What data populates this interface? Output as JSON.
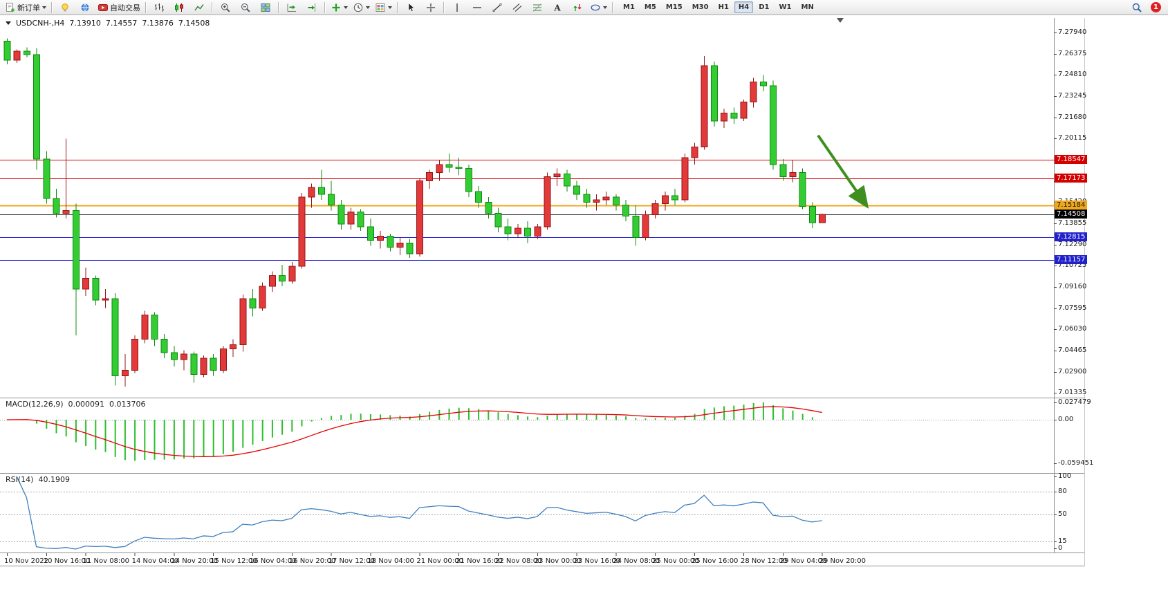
{
  "toolbar": {
    "groups": [
      {
        "name": "order",
        "items": [
          {
            "icon": "new-order",
            "label": "新订单",
            "caret": true
          }
        ]
      },
      {
        "name": "tools",
        "items": [
          {
            "icon": "metaeditor"
          },
          {
            "icon": "community"
          },
          {
            "icon": "autotrading",
            "label": "自动交易"
          }
        ]
      },
      {
        "name": "chart-types",
        "items": [
          {
            "icon": "bars-chart"
          },
          {
            "icon": "candle-chart"
          },
          {
            "icon": "line-chart"
          }
        ]
      },
      {
        "name": "zoom",
        "items": [
          {
            "icon": "zoom-in"
          },
          {
            "icon": "zoom-out"
          },
          {
            "icon": "tile-windows"
          }
        ]
      },
      {
        "name": "scroll",
        "items": [
          {
            "icon": "auto-scroll"
          },
          {
            "icon": "chart-shift"
          }
        ]
      },
      {
        "name": "insert",
        "items": [
          {
            "icon": "indicators",
            "caret": true
          },
          {
            "icon": "periods",
            "caret": true
          },
          {
            "icon": "templates",
            "caret": true
          }
        ]
      },
      {
        "name": "pointer",
        "items": [
          {
            "icon": "cursor"
          },
          {
            "icon": "crosshair"
          }
        ]
      },
      {
        "name": "objects",
        "items": [
          {
            "icon": "vline"
          },
          {
            "icon": "hline"
          },
          {
            "icon": "trendline"
          },
          {
            "icon": "channel"
          },
          {
            "icon": "fibonacci"
          },
          {
            "icon": "text"
          },
          {
            "icon": "arrows"
          },
          {
            "icon": "shapes",
            "caret": true
          }
        ]
      }
    ],
    "timeframes": {
      "items": [
        "M1",
        "M5",
        "M15",
        "M30",
        "H1",
        "H4",
        "D1",
        "W1",
        "MN"
      ],
      "active": "H4"
    },
    "notification_badge": "1"
  },
  "chart_title": {
    "symbol_period": "USDCNH-,H4",
    "open": "7.13910",
    "high": "7.14557",
    "low": "7.13876",
    "close": "7.14508"
  },
  "panels": {
    "macd": {
      "label": "MACD(12,26,9)",
      "value": "0.000091",
      "signal_value": "0.013706",
      "axis_max": "0.027479",
      "axis_zero": "0.00",
      "axis_min": "-0.059451"
    },
    "rsi": {
      "label": "RSI(14)",
      "value": "40.1909",
      "axis_labels": [
        "100",
        "80",
        "50",
        "15",
        "0"
      ],
      "axis_values": [
        100,
        80,
        50,
        15,
        0
      ],
      "levels": [
        80,
        50,
        15
      ]
    }
  },
  "chart_data": {
    "type": "candlestick",
    "symbol": "USDCNH-",
    "timeframe": "H4",
    "start_time": "10 Nov 2022 00:00",
    "candles_format": [
      "open",
      "high",
      "low",
      "close"
    ],
    "price_axis": {
      "start": 7.2794,
      "step": 0.01565,
      "count": 18
    },
    "levels": [
      {
        "name": "resistance-1",
        "price": 7.18547,
        "color": "#D40000",
        "width": 1,
        "text_color": "#fff"
      },
      {
        "name": "resistance-2",
        "price": 7.17173,
        "color": "#D40000",
        "width": 1,
        "text_color": "#fff"
      },
      {
        "name": "pivot",
        "price": 7.15184,
        "color": "#EFA71E",
        "width": 2,
        "text_color": "#1A1A00"
      },
      {
        "name": "support-1",
        "price": 7.12815,
        "color": "#2121CC",
        "width": 1,
        "text_color": "#fff"
      },
      {
        "name": "support-2",
        "price": 7.11157,
        "color": "#2121CC",
        "width": 1,
        "text_color": "#fff"
      },
      {
        "name": "current-price",
        "price": 7.14508,
        "color": "#333333",
        "width": 1,
        "badge_color": "#000000",
        "text_color": "#fff"
      }
    ],
    "arrow": {
      "from": {
        "bar": 82.6,
        "price": 7.2035
      },
      "to": {
        "bar": 87.6,
        "price": 7.151
      }
    },
    "colors": {
      "up": "#E23A3A",
      "up_border": "#941414",
      "down": "#33CC33",
      "down_border": "#0C8A0C",
      "macd_hist": "#2ABF2A",
      "macd_signal": "#E60000",
      "rsi_line": "#3F7FBF",
      "arrow": "#3F8F1F"
    },
    "time_labels": [
      {
        "bar": 0,
        "label": "10 Nov 2022"
      },
      {
        "bar": 4,
        "label": "10 Nov 16:00"
      },
      {
        "bar": 8,
        "label": "11 Nov 08:00"
      },
      {
        "bar": 13,
        "label": "14 Nov 04:00"
      },
      {
        "bar": 17,
        "label": "14 Nov 20:00"
      },
      {
        "bar": 21,
        "label": "15 Nov 12:00"
      },
      {
        "bar": 25,
        "label": "16 Nov 04:00"
      },
      {
        "bar": 29,
        "label": "16 Nov 20:00"
      },
      {
        "bar": 33,
        "label": "17 Nov 12:00"
      },
      {
        "bar": 37,
        "label": "18 Nov 04:00"
      },
      {
        "bar": 42,
        "label": "21 Nov 00:00"
      },
      {
        "bar": 46,
        "label": "21 Nov 16:00"
      },
      {
        "bar": 50,
        "label": "22 Nov 08:00"
      },
      {
        "bar": 54,
        "label": "23 Nov 00:00"
      },
      {
        "bar": 58,
        "label": "23 Nov 16:00"
      },
      {
        "bar": 62,
        "label": "24 Nov 08:00"
      },
      {
        "bar": 66,
        "label": "25 Nov 00:00"
      },
      {
        "bar": 70,
        "label": "25 Nov 16:00"
      },
      {
        "bar": 75,
        "label": "28 Nov 12:00"
      },
      {
        "bar": 79,
        "label": "29 Nov 04:00"
      },
      {
        "bar": 83,
        "label": "29 Nov 20:00"
      }
    ],
    "candles": [
      [
        7.273,
        7.275,
        7.256,
        7.259
      ],
      [
        7.259,
        7.267,
        7.257,
        7.2655
      ],
      [
        7.2655,
        7.2685,
        7.261,
        7.263
      ],
      [
        7.263,
        7.268,
        7.178,
        7.186
      ],
      [
        7.186,
        7.192,
        7.153,
        7.157
      ],
      [
        7.157,
        7.164,
        7.143,
        7.146
      ],
      [
        7.146,
        7.201,
        7.142,
        7.148
      ],
      [
        7.148,
        7.153,
        7.056,
        7.09
      ],
      [
        7.09,
        7.106,
        7.085,
        7.098
      ],
      [
        7.098,
        7.1,
        7.078,
        7.082
      ],
      [
        7.082,
        7.09,
        7.076,
        7.083
      ],
      [
        7.083,
        7.087,
        7.019,
        7.026
      ],
      [
        7.026,
        7.042,
        7.018,
        7.03
      ],
      [
        7.03,
        7.056,
        7.028,
        7.053
      ],
      [
        7.053,
        7.074,
        7.05,
        7.071
      ],
      [
        7.071,
        7.073,
        7.048,
        7.053
      ],
      [
        7.053,
        7.057,
        7.039,
        7.043
      ],
      [
        7.043,
        7.048,
        7.033,
        7.038
      ],
      [
        7.038,
        7.045,
        7.03,
        7.042
      ],
      [
        7.042,
        7.044,
        7.021,
        7.027
      ],
      [
        7.027,
        7.041,
        7.025,
        7.039
      ],
      [
        7.039,
        7.042,
        7.026,
        7.03
      ],
      [
        7.03,
        7.048,
        7.028,
        7.046
      ],
      [
        7.046,
        7.053,
        7.04,
        7.049
      ],
      [
        7.049,
        7.086,
        7.044,
        7.083
      ],
      [
        7.083,
        7.09,
        7.07,
        7.076
      ],
      [
        7.076,
        7.095,
        7.074,
        7.092
      ],
      [
        7.092,
        7.103,
        7.088,
        7.1
      ],
      [
        7.1,
        7.108,
        7.092,
        7.096
      ],
      [
        7.096,
        7.11,
        7.094,
        7.107
      ],
      [
        7.107,
        7.161,
        7.105,
        7.158
      ],
      [
        7.158,
        7.168,
        7.15,
        7.165
      ],
      [
        7.165,
        7.178,
        7.156,
        7.16
      ],
      [
        7.16,
        7.17,
        7.148,
        7.152
      ],
      [
        7.152,
        7.156,
        7.134,
        7.138
      ],
      [
        7.138,
        7.15,
        7.134,
        7.147
      ],
      [
        7.147,
        7.149,
        7.133,
        7.136
      ],
      [
        7.136,
        7.142,
        7.122,
        7.126
      ],
      [
        7.126,
        7.133,
        7.12,
        7.129
      ],
      [
        7.129,
        7.131,
        7.118,
        7.121
      ],
      [
        7.121,
        7.128,
        7.115,
        7.124
      ],
      [
        7.124,
        7.127,
        7.113,
        7.116
      ],
      [
        7.116,
        7.172,
        7.114,
        7.17
      ],
      [
        7.17,
        7.178,
        7.164,
        7.176
      ],
      [
        7.176,
        7.185,
        7.17,
        7.182
      ],
      [
        7.182,
        7.19,
        7.176,
        7.18
      ],
      [
        7.18,
        7.187,
        7.174,
        7.179
      ],
      [
        7.179,
        7.182,
        7.158,
        7.162
      ],
      [
        7.162,
        7.166,
        7.15,
        7.154
      ],
      [
        7.154,
        7.158,
        7.142,
        7.146
      ],
      [
        7.146,
        7.15,
        7.132,
        7.136
      ],
      [
        7.136,
        7.142,
        7.126,
        7.131
      ],
      [
        7.131,
        7.138,
        7.128,
        7.135
      ],
      [
        7.135,
        7.14,
        7.124,
        7.129
      ],
      [
        7.129,
        7.138,
        7.127,
        7.136
      ],
      [
        7.136,
        7.176,
        7.134,
        7.173
      ],
      [
        7.173,
        7.179,
        7.166,
        7.175
      ],
      [
        7.175,
        7.178,
        7.162,
        7.166
      ],
      [
        7.166,
        7.17,
        7.156,
        7.16
      ],
      [
        7.16,
        7.164,
        7.15,
        7.154
      ],
      [
        7.154,
        7.16,
        7.148,
        7.156
      ],
      [
        7.156,
        7.162,
        7.152,
        7.158
      ],
      [
        7.158,
        7.16,
        7.148,
        7.152
      ],
      [
        7.152,
        7.156,
        7.14,
        7.144
      ],
      [
        7.144,
        7.152,
        7.122,
        7.128
      ],
      [
        7.128,
        7.148,
        7.126,
        7.145
      ],
      [
        7.145,
        7.156,
        7.142,
        7.153
      ],
      [
        7.153,
        7.162,
        7.148,
        7.159
      ],
      [
        7.159,
        7.164,
        7.152,
        7.156
      ],
      [
        7.156,
        7.19,
        7.154,
        7.187
      ],
      [
        7.187,
        7.198,
        7.182,
        7.195
      ],
      [
        7.195,
        7.262,
        7.193,
        7.255
      ],
      [
        7.255,
        7.258,
        7.21,
        7.214
      ],
      [
        7.214,
        7.223,
        7.209,
        7.22
      ],
      [
        7.22,
        7.224,
        7.212,
        7.216
      ],
      [
        7.216,
        7.23,
        7.214,
        7.228
      ],
      [
        7.228,
        7.246,
        7.224,
        7.243
      ],
      [
        7.243,
        7.248,
        7.236,
        7.24
      ],
      [
        7.24,
        7.244,
        7.178,
        7.182
      ],
      [
        7.182,
        7.186,
        7.17,
        7.173
      ],
      [
        7.173,
        7.185,
        7.169,
        7.176
      ],
      [
        7.176,
        7.179,
        7.149,
        7.151
      ],
      [
        7.151,
        7.154,
        7.135,
        7.139
      ],
      [
        7.1391,
        7.14557,
        7.13876,
        7.14508
      ]
    ],
    "indicators": [
      {
        "name": "MACD",
        "params": [
          12,
          26,
          9
        ]
      },
      {
        "name": "RSI",
        "params": [
          14
        ]
      }
    ]
  }
}
